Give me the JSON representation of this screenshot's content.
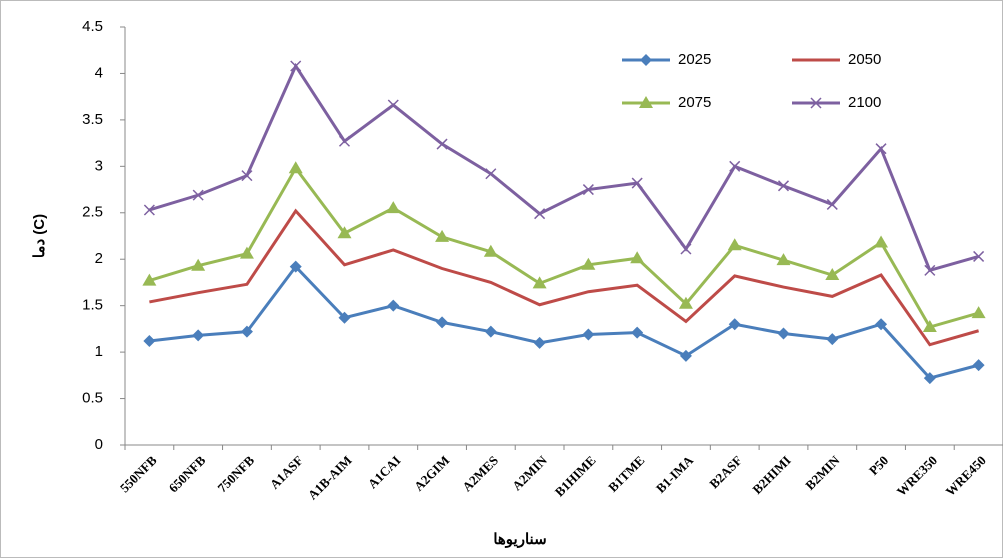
{
  "chart_data": {
    "type": "line",
    "y_label": "دما (C)",
    "x_label": "سناريوها",
    "categories": [
      "550NFB",
      "650NFB",
      "750NFB",
      "A1ASF",
      "A1B-AIM",
      "A1CAI",
      "A2GIM",
      "A2MES",
      "A2MIN",
      "B1HIME",
      "B1TME",
      "B1-IMA",
      "B2ASF",
      "B2HIMI",
      "B2MIN",
      "P50",
      "WRE350",
      "WRE450"
    ],
    "series": [
      {
        "name": "2025",
        "color": "#4a7ebb",
        "marker": "diamond",
        "values": [
          1.12,
          1.18,
          1.22,
          1.92,
          1.37,
          1.5,
          1.32,
          1.22,
          1.1,
          1.19,
          1.21,
          0.96,
          1.3,
          1.2,
          1.14,
          1.3,
          0.72,
          0.86
        ]
      },
      {
        "name": "2050",
        "color": "#be4b48",
        "marker": "none",
        "values": [
          1.54,
          1.64,
          1.73,
          2.52,
          1.94,
          2.1,
          1.9,
          1.75,
          1.51,
          1.65,
          1.72,
          1.33,
          1.82,
          1.7,
          1.6,
          1.83,
          1.08,
          1.23
        ]
      },
      {
        "name": "2075",
        "color": "#98b954",
        "marker": "triangle",
        "values": [
          1.77,
          1.93,
          2.06,
          2.98,
          2.28,
          2.55,
          2.24,
          2.08,
          1.74,
          1.94,
          2.01,
          1.52,
          2.15,
          1.99,
          1.83,
          2.18,
          1.27,
          1.42
        ]
      },
      {
        "name": "2100",
        "color": "#7d60a0",
        "marker": "x",
        "values": [
          2.53,
          2.69,
          2.9,
          4.08,
          3.27,
          3.66,
          3.24,
          2.92,
          2.49,
          2.75,
          2.82,
          2.11,
          3.0,
          2.79,
          2.59,
          3.19,
          1.88,
          2.03
        ]
      }
    ],
    "ylim": [
      0,
      4.5
    ],
    "yticks": [
      0,
      0.5,
      1,
      1.5,
      2,
      2.5,
      3,
      3.5,
      4,
      4.5
    ],
    "grid": false
  }
}
